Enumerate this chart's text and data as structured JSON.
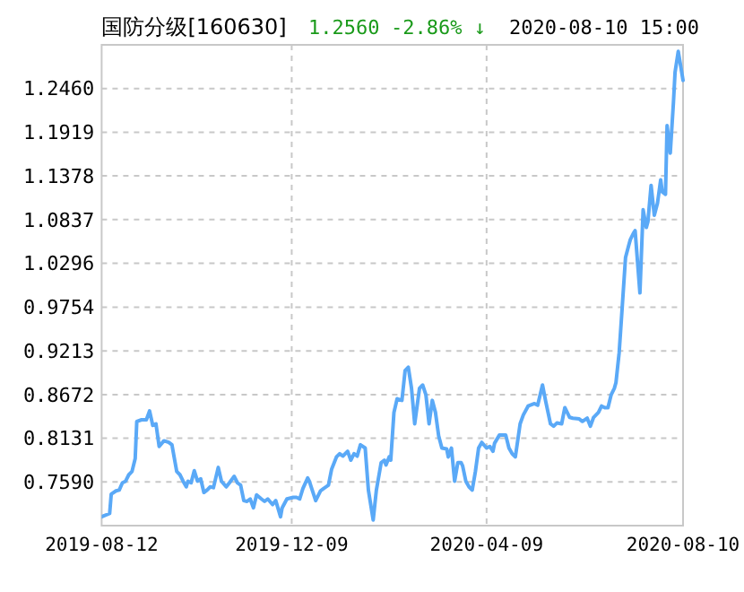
{
  "chart_data": {
    "type": "line",
    "title": "国防分级[160630]",
    "annotations": [
      "1.2560",
      "-2.86% ↓",
      "2020-08-10 15:00"
    ],
    "xlim": [
      "2019-08-12",
      "2020-08-10"
    ],
    "xticks": [
      "2019-08-12",
      "2019-12-09",
      "2020-04-09",
      "2020-08-10"
    ],
    "ylim": [
      0.705,
      1.3
    ],
    "yticks": [
      {
        "value": 0.759,
        "label": "0.7590"
      },
      0.8131,
      0.8672,
      0.9213,
      0.9754,
      1.0296,
      1.0837,
      1.1378,
      1.1919,
      {
        "value": 1.246,
        "label": "1.2460"
      }
    ],
    "grid": true,
    "marker": "none",
    "line_style": "solid",
    "x": [
      "2019-08-12",
      "2019-08-17",
      "2019-08-18",
      "2019-08-21",
      "2019-08-23",
      "2019-08-25",
      "2019-08-27",
      "2019-08-29",
      "2019-08-31",
      "2019-09-02",
      "2019-09-03",
      "2019-09-06",
      "2019-09-09",
      "2019-09-11",
      "2019-09-13",
      "2019-09-15",
      "2019-09-17",
      "2019-09-20",
      "2019-09-23",
      "2019-09-25",
      "2019-09-28",
      "2019-09-30",
      "2019-10-02",
      "2019-10-04",
      "2019-10-05",
      "2019-10-07",
      "2019-10-09",
      "2019-10-11",
      "2019-10-13",
      "2019-10-15",
      "2019-10-17",
      "2019-10-19",
      "2019-10-21",
      "2019-10-24",
      "2019-10-26",
      "2019-10-29",
      "2019-10-31",
      "2019-11-03",
      "2019-11-05",
      "2019-11-07",
      "2019-11-09",
      "2019-11-11",
      "2019-11-13",
      "2019-11-15",
      "2019-11-17",
      "2019-11-20",
      "2019-11-22",
      "2019-11-24",
      "2019-11-27",
      "2019-11-29",
      "2019-12-02",
      "2019-12-03",
      "2019-12-06",
      "2019-12-10",
      "2019-12-12",
      "2019-12-14",
      "2019-12-16",
      "2019-12-19",
      "2019-12-20",
      "2019-12-24",
      "2019-12-27",
      "2019-12-29",
      "2020-01-01",
      "2020-01-03",
      "2020-01-06",
      "2020-01-08",
      "2020-01-10",
      "2020-01-13",
      "2020-01-15",
      "2020-01-17",
      "2020-01-19",
      "2020-01-21",
      "2020-01-24",
      "2020-01-26",
      "2020-01-29",
      "2020-01-31",
      "2020-02-03",
      "2020-02-05",
      "2020-02-06",
      "2020-02-08",
      "2020-02-09",
      "2020-02-11",
      "2020-02-13",
      "2020-02-16",
      "2020-02-18",
      "2020-02-20",
      "2020-02-22",
      "2020-02-24",
      "2020-02-27",
      "2020-02-29",
      "2020-03-02",
      "2020-03-04",
      "2020-03-06",
      "2020-03-08",
      "2020-03-10",
      "2020-03-12",
      "2020-03-15",
      "2020-03-16",
      "2020-03-18",
      "2020-03-20",
      "2020-03-22",
      "2020-03-24",
      "2020-03-25",
      "2020-03-27",
      "2020-03-29",
      "2020-03-31",
      "2020-04-02",
      "2020-04-04",
      "2020-04-06",
      "2020-04-09",
      "2020-04-11",
      "2020-04-13",
      "2020-04-14",
      "2020-04-17",
      "2020-04-21",
      "2020-04-23",
      "2020-04-25",
      "2020-04-27",
      "2020-04-30",
      "2020-05-02",
      "2020-05-05",
      "2020-05-09",
      "2020-05-11",
      "2020-05-14",
      "2020-05-16",
      "2020-05-19",
      "2020-05-21",
      "2020-05-23",
      "2020-05-26",
      "2020-05-28",
      "2020-05-31",
      "2020-06-02",
      "2020-06-06",
      "2020-06-08",
      "2020-06-11",
      "2020-06-13",
      "2020-06-15",
      "2020-06-18",
      "2020-06-20",
      "2020-06-22",
      "2020-06-24",
      "2020-06-26",
      "2020-06-28",
      "2020-06-29",
      "2020-07-01",
      "2020-07-03",
      "2020-07-05",
      "2020-07-07",
      "2020-07-08",
      "2020-07-10",
      "2020-07-11",
      "2020-07-14",
      "2020-07-16",
      "2020-07-18",
      "2020-07-19",
      "2020-07-21",
      "2020-07-23",
      "2020-07-25",
      "2020-07-27",
      "2020-07-28",
      "2020-07-30",
      "2020-07-31",
      "2020-08-02",
      "2020-08-04",
      "2020-08-05",
      "2020-08-07",
      "2020-08-10"
    ],
    "series": [
      {
        "color": "#5aa9f7",
        "values": [
          0.716,
          0.72,
          0.744,
          0.748,
          0.749,
          0.758,
          0.76,
          0.768,
          0.772,
          0.788,
          0.834,
          0.836,
          0.836,
          0.847,
          0.829,
          0.831,
          0.803,
          0.81,
          0.808,
          0.805,
          0.772,
          0.768,
          0.76,
          0.753,
          0.76,
          0.758,
          0.773,
          0.76,
          0.763,
          0.746,
          0.749,
          0.753,
          0.752,
          0.777,
          0.76,
          0.753,
          0.758,
          0.766,
          0.758,
          0.755,
          0.736,
          0.735,
          0.738,
          0.727,
          0.743,
          0.738,
          0.735,
          0.738,
          0.731,
          0.736,
          0.716,
          0.727,
          0.738,
          0.74,
          0.74,
          0.738,
          0.751,
          0.764,
          0.76,
          0.736,
          0.748,
          0.751,
          0.755,
          0.775,
          0.79,
          0.794,
          0.791,
          0.797,
          0.786,
          0.794,
          0.791,
          0.805,
          0.801,
          0.749,
          0.712,
          0.749,
          0.783,
          0.786,
          0.78,
          0.79,
          0.786,
          0.845,
          0.862,
          0.86,
          0.897,
          0.901,
          0.875,
          0.831,
          0.875,
          0.879,
          0.867,
          0.831,
          0.86,
          0.845,
          0.816,
          0.801,
          0.8,
          0.79,
          0.801,
          0.76,
          0.783,
          0.783,
          0.779,
          0.76,
          0.753,
          0.749,
          0.772,
          0.801,
          0.808,
          0.801,
          0.803,
          0.797,
          0.807,
          0.817,
          0.817,
          0.801,
          0.794,
          0.79,
          0.831,
          0.842,
          0.853,
          0.856,
          0.854,
          0.879,
          0.859,
          0.831,
          0.828,
          0.832,
          0.831,
          0.851,
          0.839,
          0.838,
          0.837,
          0.834,
          0.838,
          0.828,
          0.839,
          0.845,
          0.853,
          0.851,
          0.851,
          0.867,
          0.875,
          0.882,
          0.919,
          0.978,
          1.037,
          1.052,
          1.059,
          1.067,
          1.07,
          0.993,
          1.096,
          1.074,
          1.081,
          1.126,
          1.089,
          1.104,
          1.133,
          1.118,
          1.115,
          1.2,
          1.166,
          1.229,
          1.266,
          1.292,
          1.256
        ]
      }
    ]
  }
}
